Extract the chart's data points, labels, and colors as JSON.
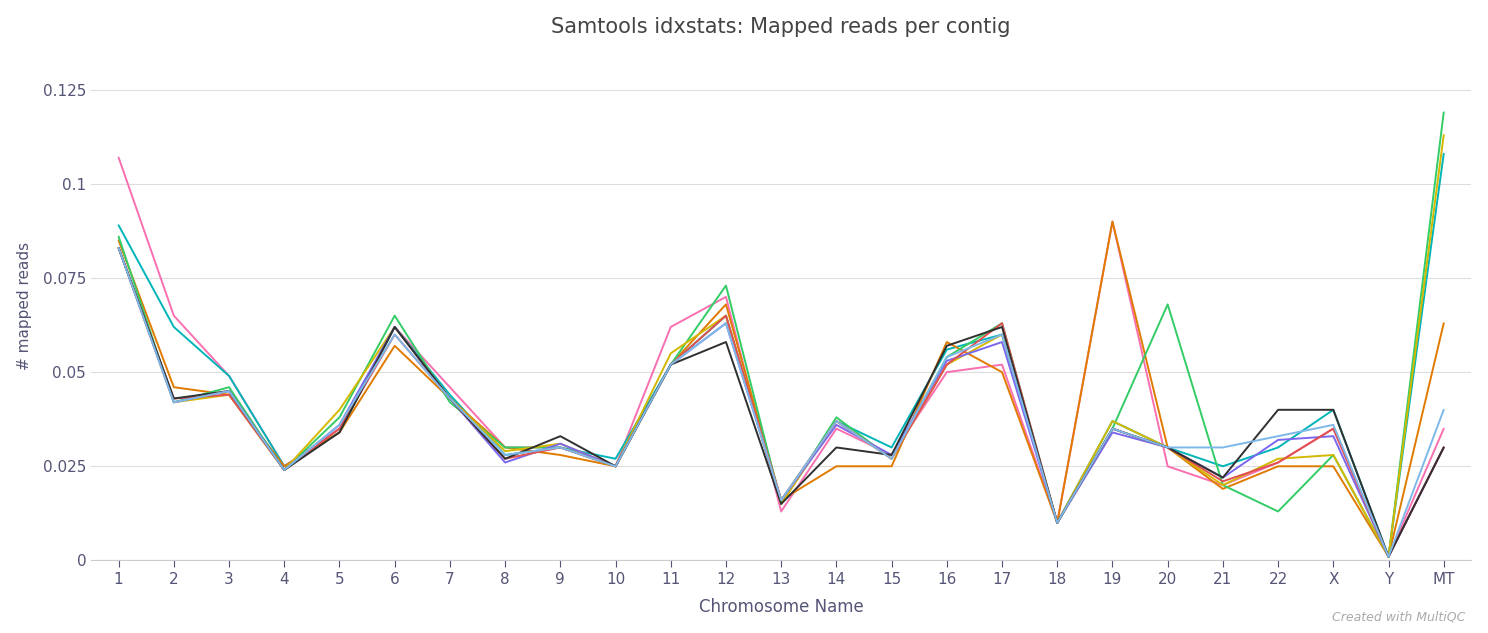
{
  "title": "Samtools idxstats: Mapped reads per contig",
  "xlabel": "Chromosome Name",
  "ylabel": "# mapped reads",
  "watermark": "Created with MultiQC",
  "xticks": [
    "1",
    "2",
    "3",
    "4",
    "5",
    "6",
    "7",
    "8",
    "9",
    "10",
    "11",
    "12",
    "13",
    "14",
    "15",
    "16",
    "17",
    "18",
    "19",
    "20",
    "21",
    "22",
    "X",
    "Y",
    "MT"
  ],
  "ylim": [
    0,
    0.135
  ],
  "yticks": [
    0,
    0.025,
    0.05,
    0.075,
    0.1,
    0.125
  ],
  "series": [
    {
      "name": "pink",
      "color": "#f96fb0",
      "values": [
        0.107,
        0.065,
        0.049,
        0.025,
        0.035,
        0.062,
        0.046,
        0.03,
        0.03,
        0.025,
        0.062,
        0.07,
        0.013,
        0.035,
        0.028,
        0.05,
        0.052,
        0.01,
        0.09,
        0.025,
        0.02,
        0.026,
        0.035,
        0.001,
        0.035
      ]
    },
    {
      "name": "teal",
      "color": "#00b5b8",
      "values": [
        0.089,
        0.062,
        0.049,
        0.025,
        0.034,
        0.062,
        0.044,
        0.028,
        0.03,
        0.027,
        0.052,
        0.065,
        0.016,
        0.037,
        0.03,
        0.056,
        0.06,
        0.01,
        0.037,
        0.03,
        0.025,
        0.03,
        0.04,
        0.001,
        0.108
      ]
    },
    {
      "name": "orange",
      "color": "#e07b00",
      "values": [
        0.085,
        0.046,
        0.044,
        0.025,
        0.034,
        0.057,
        0.043,
        0.03,
        0.028,
        0.025,
        0.052,
        0.068,
        0.016,
        0.025,
        0.025,
        0.058,
        0.05,
        0.01,
        0.09,
        0.03,
        0.019,
        0.025,
        0.025,
        0.001,
        0.063
      ]
    },
    {
      "name": "green",
      "color": "#33cc66",
      "values": [
        0.086,
        0.042,
        0.046,
        0.024,
        0.038,
        0.065,
        0.042,
        0.03,
        0.03,
        0.025,
        0.052,
        0.073,
        0.015,
        0.038,
        0.027,
        0.054,
        0.063,
        0.01,
        0.035,
        0.068,
        0.02,
        0.013,
        0.028,
        0.001,
        0.119
      ]
    },
    {
      "name": "yellow",
      "color": "#d4b800",
      "values": [
        0.083,
        0.042,
        0.044,
        0.024,
        0.04,
        0.062,
        0.043,
        0.029,
        0.031,
        0.025,
        0.055,
        0.065,
        0.015,
        0.037,
        0.027,
        0.052,
        0.06,
        0.01,
        0.037,
        0.03,
        0.02,
        0.027,
        0.028,
        0.001,
        0.113
      ]
    },
    {
      "name": "purple",
      "color": "#7b68ee",
      "values": [
        0.083,
        0.042,
        0.045,
        0.024,
        0.036,
        0.062,
        0.043,
        0.026,
        0.031,
        0.025,
        0.052,
        0.063,
        0.016,
        0.036,
        0.028,
        0.053,
        0.058,
        0.01,
        0.034,
        0.03,
        0.022,
        0.032,
        0.033,
        0.001,
        0.03
      ]
    },
    {
      "name": "red",
      "color": "#e05050",
      "values": [
        0.083,
        0.043,
        0.044,
        0.024,
        0.035,
        0.06,
        0.043,
        0.027,
        0.03,
        0.025,
        0.052,
        0.065,
        0.016,
        0.037,
        0.027,
        0.052,
        0.063,
        0.01,
        0.035,
        0.03,
        0.021,
        0.026,
        0.035,
        0.001,
        0.03
      ]
    },
    {
      "name": "black",
      "color": "#303030",
      "values": [
        0.083,
        0.043,
        0.045,
        0.024,
        0.034,
        0.062,
        0.043,
        0.027,
        0.033,
        0.025,
        0.052,
        0.058,
        0.015,
        0.03,
        0.028,
        0.057,
        0.062,
        0.01,
        0.035,
        0.03,
        0.022,
        0.04,
        0.04,
        0.001,
        0.03
      ]
    },
    {
      "name": "blue",
      "color": "#7eb8e8",
      "values": [
        0.083,
        0.042,
        0.045,
        0.024,
        0.036,
        0.06,
        0.043,
        0.028,
        0.03,
        0.025,
        0.052,
        0.063,
        0.016,
        0.037,
        0.027,
        0.054,
        0.06,
        0.01,
        0.035,
        0.03,
        0.03,
        0.033,
        0.036,
        0.001,
        0.04
      ]
    }
  ],
  "background_color": "#ffffff",
  "plot_background": "#ffffff",
  "grid_color": "#dddddd",
  "text_color": "#555577",
  "title_color": "#444444"
}
